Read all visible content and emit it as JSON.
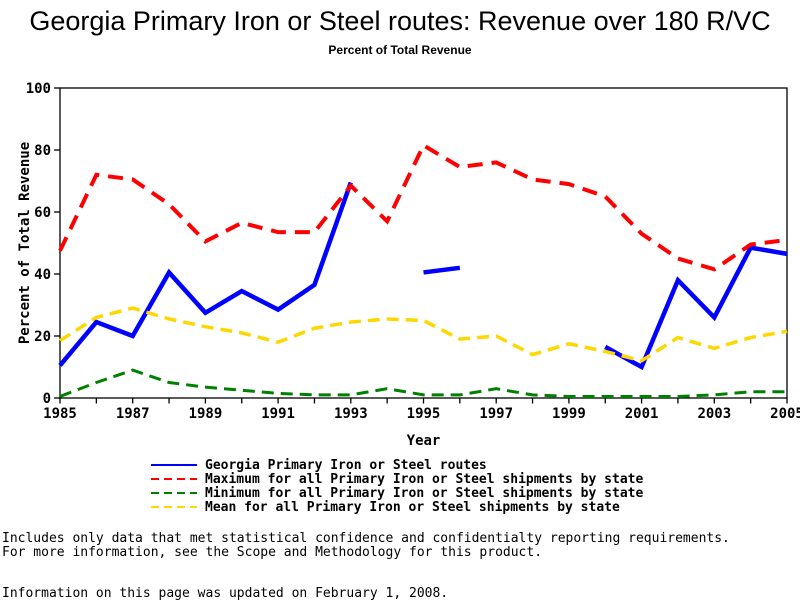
{
  "title": "Georgia Primary Iron or Steel routes: Revenue over 180 R/VC",
  "subtitle": "Percent of Total Revenue",
  "chart_data": {
    "type": "line",
    "x": [
      1985,
      1986,
      1987,
      1988,
      1989,
      1990,
      1991,
      1992,
      1993,
      1994,
      1995,
      1996,
      1997,
      1998,
      1999,
      2000,
      2001,
      2002,
      2003,
      2004,
      2005
    ],
    "xticks": [
      1985,
      1987,
      1989,
      1991,
      1993,
      1995,
      1997,
      1999,
      2001,
      2003,
      2005
    ],
    "yticks": [
      0,
      20,
      40,
      60,
      80,
      100
    ],
    "xlabel": "Year",
    "ylabel": "Percent of Total Revenue",
    "ylim": [
      0,
      100
    ],
    "xlim": [
      1985,
      2005
    ],
    "grid": false,
    "legend_position": "bottom",
    "series": [
      {
        "id": "georgia",
        "name": "Georgia Primary Iron or Steel routes",
        "color": "#0000ff",
        "dash": "solid",
        "values": [
          10.5,
          24.5,
          20,
          40.5,
          27.5,
          34.5,
          28.5,
          36.5,
          69.5,
          null,
          40.5,
          42,
          null,
          null,
          null,
          16.5,
          10,
          38,
          26,
          48.5,
          46.5
        ]
      },
      {
        "id": "maximum",
        "name": "Maximum for all Primary Iron or Steel shipments by state",
        "color": "#ff0000",
        "dash": "dashed",
        "values": [
          47.5,
          72,
          70.5,
          62.5,
          50.5,
          56.5,
          53.5,
          53.5,
          68.5,
          57,
          81.5,
          74.5,
          76,
          70.5,
          69,
          65,
          53,
          45,
          41.5,
          49.5,
          51
        ]
      },
      {
        "id": "minimum",
        "name": "Minimum for all Primary Iron or Steel shipments by state",
        "color": "#008000",
        "dash": "dashed",
        "values": [
          0.5,
          5,
          9,
          5,
          3.5,
          2.5,
          1.5,
          1,
          1,
          3,
          1,
          1,
          3,
          1,
          0.5,
          0.5,
          0.5,
          0.5,
          1,
          2,
          2
        ]
      },
      {
        "id": "mean",
        "name": "Mean for all Primary Iron or Steel shipments by state",
        "color": "#ffd700",
        "dash": "dashed",
        "values": [
          18.5,
          26,
          29,
          25.5,
          23,
          21,
          18,
          22.5,
          24.5,
          25.5,
          25,
          19,
          20,
          14,
          17.5,
          15,
          12,
          19.5,
          16,
          19.5,
          21.5
        ]
      }
    ]
  },
  "footnotes": {
    "line1": "Includes only data that met statistical confidence and confidentialty reporting requirements.",
    "line2": "For more information, see the Scope and Methodology for this product.",
    "updated": "Information on this page was updated on February 1, 2008."
  }
}
